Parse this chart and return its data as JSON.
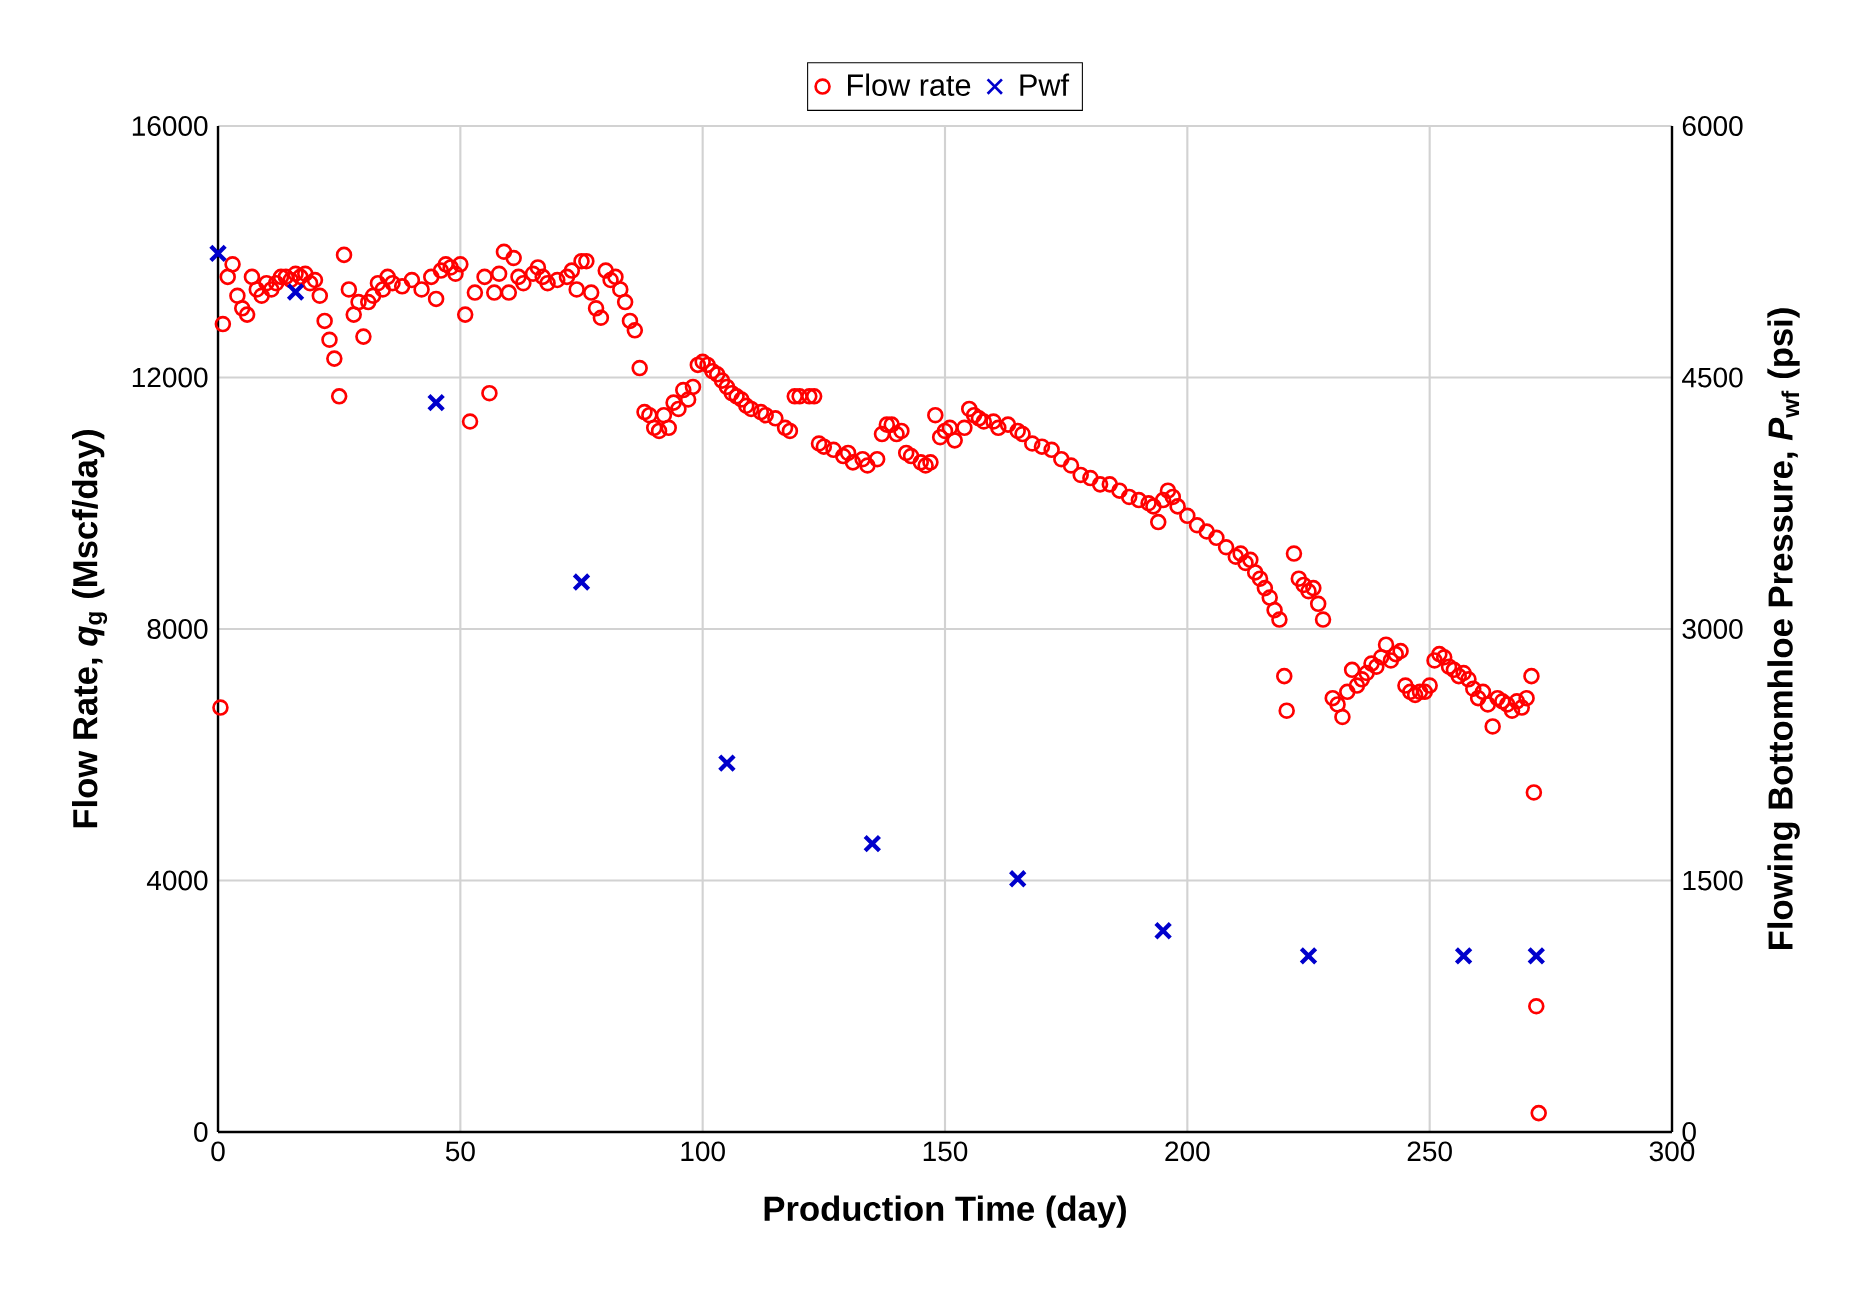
{
  "chart_data": {
    "type": "scatter",
    "xlabel": "Production Time (day)",
    "ylabel": "Flow Rate, *q*$_{g}$ (Mscf/day)",
    "y2label": "Flowing Bottomhloe Pressure, *P*$_{wf}$ (psi)",
    "xlim": [
      0,
      300
    ],
    "xticks": [
      0,
      50,
      100,
      150,
      200,
      250,
      300
    ],
    "ylim": [
      0,
      16000
    ],
    "yticks": [
      0,
      4000,
      8000,
      12000,
      16000
    ],
    "y2lim": [
      0,
      6000
    ],
    "y2ticks": [
      0,
      1500,
      3000,
      4500,
      6000
    ],
    "grid": true,
    "legend": "top",
    "series": [
      {
        "name": "Flow rate",
        "color": "#ff0000",
        "marker": "circle",
        "x": [
          0.5,
          1,
          2,
          3,
          4,
          5,
          6,
          7,
          8,
          9,
          10,
          11,
          12,
          13,
          14,
          15,
          16,
          17,
          18,
          19,
          20,
          21,
          22,
          23,
          24,
          25,
          26,
          27,
          28,
          29,
          30,
          31,
          32,
          33,
          34,
          35,
          36,
          38,
          40,
          42,
          44,
          45,
          46,
          47,
          48,
          49,
          50,
          51,
          52,
          53,
          55,
          56,
          57,
          58,
          59,
          60,
          61,
          62,
          63,
          65,
          66,
          67,
          68,
          70,
          72,
          73,
          74,
          75,
          76,
          77,
          78,
          79,
          80,
          81,
          82,
          83,
          84,
          85,
          86,
          87,
          88,
          89,
          90,
          91,
          92,
          93,
          94,
          95,
          96,
          97,
          98,
          99,
          100,
          101,
          102,
          103,
          104,
          105,
          106,
          107,
          108,
          109,
          110,
          112,
          113,
          115,
          117,
          118,
          119,
          120,
          122,
          123,
          124,
          125,
          127,
          129,
          130,
          131,
          133,
          134,
          136,
          137,
          138,
          139,
          140,
          141,
          142,
          143,
          145,
          146,
          147,
          148,
          149,
          150,
          151,
          152,
          154,
          155,
          156,
          157,
          158,
          160,
          161,
          163,
          165,
          166,
          168,
          170,
          172,
          174,
          176,
          178,
          180,
          182,
          184,
          186,
          188,
          190,
          192,
          193,
          194,
          195,
          196,
          197,
          198,
          200,
          202,
          204,
          206,
          208,
          210,
          211,
          212,
          213,
          214,
          215,
          216,
          217,
          218,
          219,
          220,
          220.5,
          222,
          223,
          224,
          225,
          226,
          227,
          228,
          230,
          231,
          232,
          233,
          234,
          235,
          236,
          237,
          238,
          239,
          240,
          241,
          242,
          243,
          244,
          245,
          246,
          247,
          248,
          249,
          250,
          251,
          252,
          253,
          254,
          255,
          256,
          257,
          258,
          259,
          260,
          261,
          262,
          263,
          264,
          265,
          266,
          267,
          268,
          269,
          270,
          271,
          271.5,
          272,
          272.5
        ],
        "values": [
          6750,
          12850,
          13600,
          13800,
          13300,
          13100,
          13000,
          13600,
          13400,
          13300,
          13500,
          13400,
          13500,
          13600,
          13600,
          13550,
          13650,
          13600,
          13650,
          13500,
          13550,
          13300,
          12900,
          12600,
          12300,
          11700,
          13950,
          13400,
          13000,
          13200,
          12650,
          13200,
          13300,
          13500,
          13400,
          13600,
          13500,
          13450,
          13550,
          13400,
          13600,
          13250,
          13700,
          13800,
          13750,
          13650,
          13800,
          13000,
          11300,
          13350,
          13600,
          11750,
          13350,
          13650,
          14000,
          13350,
          13900,
          13600,
          13500,
          13650,
          13750,
          13600,
          13500,
          13550,
          13600,
          13700,
          13400,
          13850,
          13850,
          13350,
          13100,
          12950,
          13700,
          13550,
          13600,
          13400,
          13200,
          12900,
          12750,
          12150,
          11450,
          11400,
          11200,
          11150,
          11400,
          11200,
          11600,
          11500,
          11800,
          11650,
          11850,
          12200,
          12250,
          12200,
          12100,
          12050,
          11950,
          11850,
          11750,
          11700,
          11650,
          11550,
          11500,
          11450,
          11400,
          11350,
          11200,
          11150,
          11700,
          11700,
          11700,
          11700,
          10950,
          10900,
          10850,
          10750,
          10800,
          10650,
          10700,
          10600,
          10700,
          11100,
          11250,
          11250,
          11100,
          11150,
          10800,
          10750,
          10650,
          10600,
          10650,
          11400,
          11050,
          11150,
          11200,
          11000,
          11200,
          11500,
          11400,
          11350,
          11300,
          11300,
          11200,
          11250,
          11150,
          11100,
          10950,
          10900,
          10850,
          10700,
          10600,
          10450,
          10400,
          10300,
          10300,
          10200,
          10100,
          10050,
          10000,
          9950,
          9700,
          10050,
          10200,
          10100,
          9950,
          9800,
          9650,
          9550,
          9450,
          9300,
          9150,
          9200,
          9050,
          9100,
          8900,
          8800,
          8650,
          8500,
          8300,
          8150,
          7250,
          6700,
          9200,
          8800,
          8700,
          8600,
          8650,
          8400,
          8150,
          6900,
          6800,
          6600,
          7000,
          7350,
          7100,
          7200,
          7300,
          7450,
          7400,
          7550,
          7750,
          7500,
          7600,
          7650,
          7100,
          7000,
          6950,
          7000,
          7000,
          7100,
          7500,
          7600,
          7550,
          7400,
          7350,
          7250,
          7300,
          7200,
          7050,
          6900,
          7000,
          6800,
          6450,
          6900,
          6850,
          6800,
          6700,
          6850,
          6750,
          6900,
          7250,
          5400,
          2000,
          300
        ]
      },
      {
        "name": "Pwf",
        "color": "#0000cc",
        "marker": "cross",
        "axis": "y2",
        "x": [
          0,
          16,
          45,
          75,
          105,
          135,
          165,
          195,
          225,
          257,
          272
        ],
        "values": [
          5240,
          5010,
          4350,
          3280,
          2200,
          1720,
          1510,
          1200,
          1050,
          1050,
          1050
        ]
      }
    ]
  }
}
